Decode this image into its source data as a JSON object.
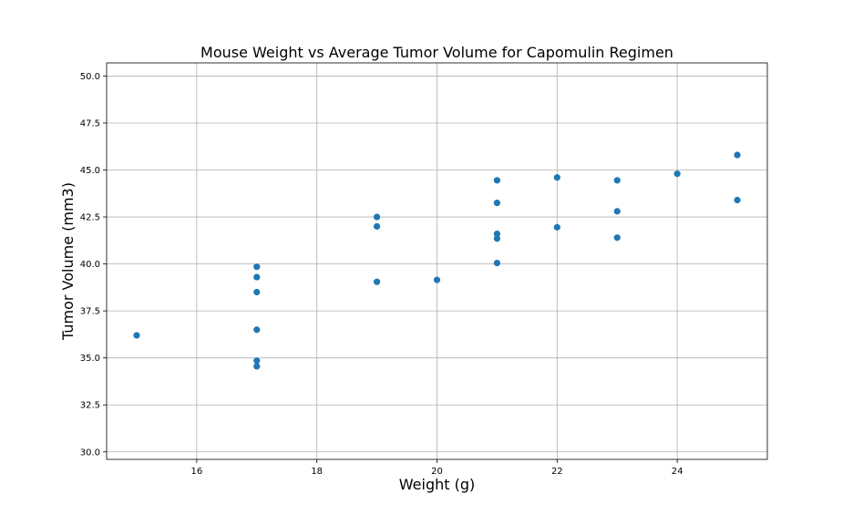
{
  "chart_data": {
    "type": "scatter",
    "title": "Mouse Weight vs Average Tumor Volume for Capomulin Regimen",
    "xlabel": "Weight (g)",
    "ylabel": "Tumor Volume (mm3)",
    "xlim": [
      14.5,
      25.5
    ],
    "ylim": [
      29.6,
      50.7
    ],
    "xticks": [
      16,
      18,
      20,
      22,
      24
    ],
    "yticks": [
      30.0,
      32.5,
      35.0,
      37.5,
      40.0,
      42.5,
      45.0,
      47.5,
      50.0
    ],
    "grid": true,
    "color": "#1f77b4",
    "points": [
      {
        "x": 15,
        "y": 36.2
      },
      {
        "x": 17,
        "y": 39.85
      },
      {
        "x": 17,
        "y": 39.3
      },
      {
        "x": 17,
        "y": 38.5
      },
      {
        "x": 17,
        "y": 36.5
      },
      {
        "x": 17,
        "y": 34.85
      },
      {
        "x": 17,
        "y": 34.55
      },
      {
        "x": 19,
        "y": 42.5
      },
      {
        "x": 19,
        "y": 42.0
      },
      {
        "x": 19,
        "y": 39.05
      },
      {
        "x": 20,
        "y": 39.15
      },
      {
        "x": 21,
        "y": 44.45
      },
      {
        "x": 21,
        "y": 43.25
      },
      {
        "x": 21,
        "y": 41.6
      },
      {
        "x": 21,
        "y": 41.35
      },
      {
        "x": 21,
        "y": 40.05
      },
      {
        "x": 22,
        "y": 44.6
      },
      {
        "x": 22,
        "y": 41.95
      },
      {
        "x": 23,
        "y": 44.45
      },
      {
        "x": 23,
        "y": 42.8
      },
      {
        "x": 23,
        "y": 41.4
      },
      {
        "x": 24,
        "y": 44.8
      },
      {
        "x": 25,
        "y": 45.8
      },
      {
        "x": 25,
        "y": 43.4
      }
    ]
  }
}
